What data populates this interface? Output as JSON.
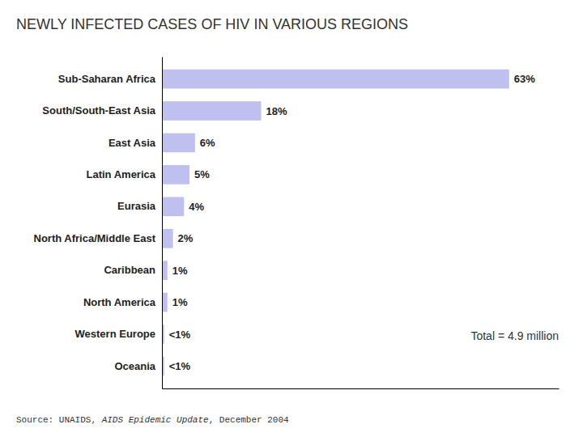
{
  "chart_data": {
    "type": "bar",
    "orientation": "horizontal",
    "title": "NEWLY INFECTED CASES OF HIV IN VARIOUS REGIONS",
    "categories": [
      "Sub-Saharan Africa",
      "South/South-East Asia",
      "East Asia",
      "Latin America",
      "Eurasia",
      "North Africa/Middle East",
      "Caribbean",
      "North America",
      "Western Europe",
      "Oceania"
    ],
    "values": [
      63,
      18,
      6,
      5,
      4,
      2,
      1,
      1,
      0.4,
      0.4
    ],
    "value_labels": [
      "63%",
      "18%",
      "6%",
      "5%",
      "4%",
      "2%",
      "1%",
      "1%",
      "<1%",
      "<1%"
    ],
    "data_labels": true,
    "color": "#c0c0f0",
    "xlim": [
      0,
      72
    ],
    "tick_labels": "y",
    "grid": false,
    "annotations": [
      "Total = 4.9 million"
    ],
    "source": [
      "Source: UNAIDS, ",
      "AIDS Epidemic Update",
      ", December 2004"
    ]
  }
}
